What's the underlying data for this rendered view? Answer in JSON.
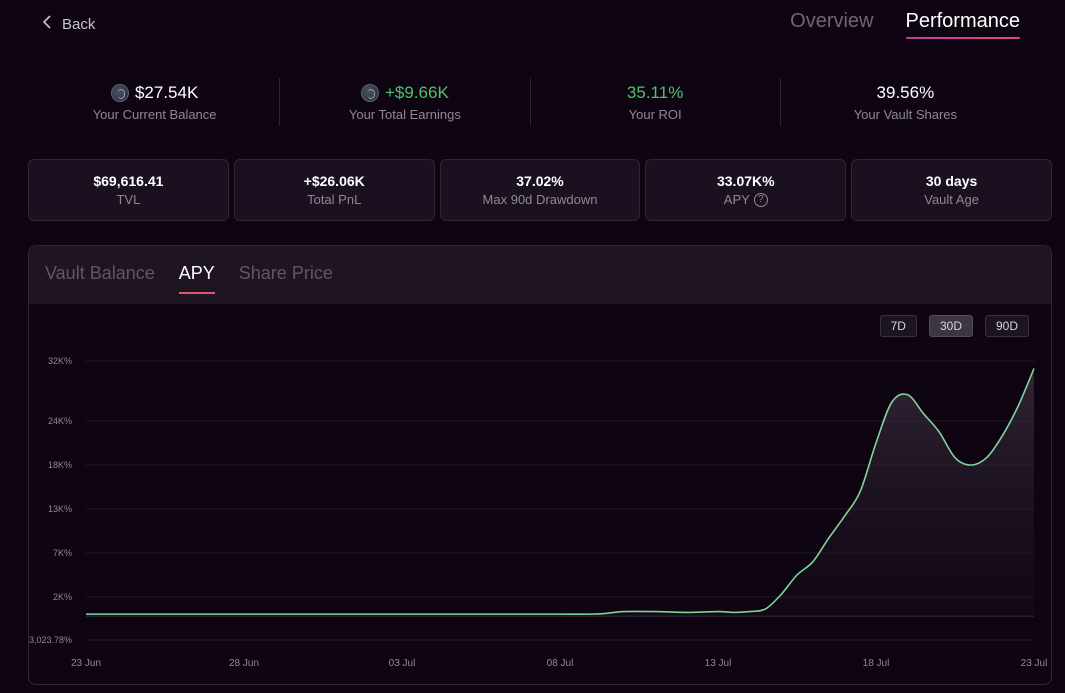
{
  "nav": {
    "back_label": "Back",
    "tabs": [
      {
        "label": "Overview",
        "active": false
      },
      {
        "label": "Performance",
        "active": true
      }
    ]
  },
  "stats": [
    {
      "value": "$27.54K",
      "label": "Your Current Balance",
      "icon": "coin-icon",
      "color": "#ffffff"
    },
    {
      "value": "+$9.66K",
      "label": "Your Total Earnings",
      "icon": "coin-icon",
      "color": "#4cc36a"
    },
    {
      "value": "35.11%",
      "label": "Your ROI",
      "icon": null,
      "color": "#4cc36a"
    },
    {
      "value": "39.56%",
      "label": "Your Vault Shares",
      "icon": null,
      "color": "#ffffff"
    }
  ],
  "cards": [
    {
      "value": "$69,616.41",
      "label": "TVL"
    },
    {
      "value": "+$26.06K",
      "label": "Total PnL"
    },
    {
      "value": "37.02%",
      "label": "Max 90d Drawdown"
    },
    {
      "value": "33.07K%",
      "label": "APY",
      "help": "?"
    },
    {
      "value": "30 days",
      "label": "Vault Age"
    }
  ],
  "panel": {
    "tabs": [
      {
        "label": "Vault Balance",
        "active": false
      },
      {
        "label": "APY",
        "active": true
      },
      {
        "label": "Share Price",
        "active": false
      }
    ],
    "ranges": [
      {
        "label": "7D",
        "active": false
      },
      {
        "label": "30D",
        "active": true
      },
      {
        "label": "90D",
        "active": false
      }
    ]
  },
  "colors": {
    "line": "#7ed49a",
    "accent": "#e0566a",
    "positive": "#4cc36a"
  },
  "chart_data": {
    "type": "area",
    "x_ticks": [
      "23 Jun",
      "28 Jun",
      "03 Jul",
      "08 Jul",
      "13 Jul",
      "18 Jul",
      "23 Jul"
    ],
    "y_ticks": [
      "32K%",
      "24K%",
      "18K%",
      "13K%",
      "7K%",
      "2K%",
      "-3,023.78%"
    ],
    "y_tick_values": [
      32000,
      24000,
      18000,
      13000,
      7000,
      2000,
      -3023.78
    ],
    "x_days": [
      0,
      2,
      4,
      6,
      8,
      10,
      12,
      14,
      15,
      16,
      16.5,
      17,
      18,
      19,
      20,
      20.5,
      21,
      21.5,
      22,
      22.5,
      23,
      23.5,
      24,
      24.5,
      25,
      25.5,
      26,
      26.5,
      27,
      27.5,
      28,
      28.5,
      29,
      29.5,
      30
    ],
    "values": [
      0,
      0,
      0,
      0,
      0,
      0,
      0,
      0,
      0,
      0,
      100,
      300,
      300,
      200,
      300,
      200,
      300,
      600,
      2300,
      4500,
      6000,
      9000,
      12000,
      15000,
      21000,
      26500,
      27500,
      25000,
      22500,
      19000,
      18000,
      19000,
      22000,
      26000,
      31000
    ],
    "grid": true,
    "legend": false
  }
}
